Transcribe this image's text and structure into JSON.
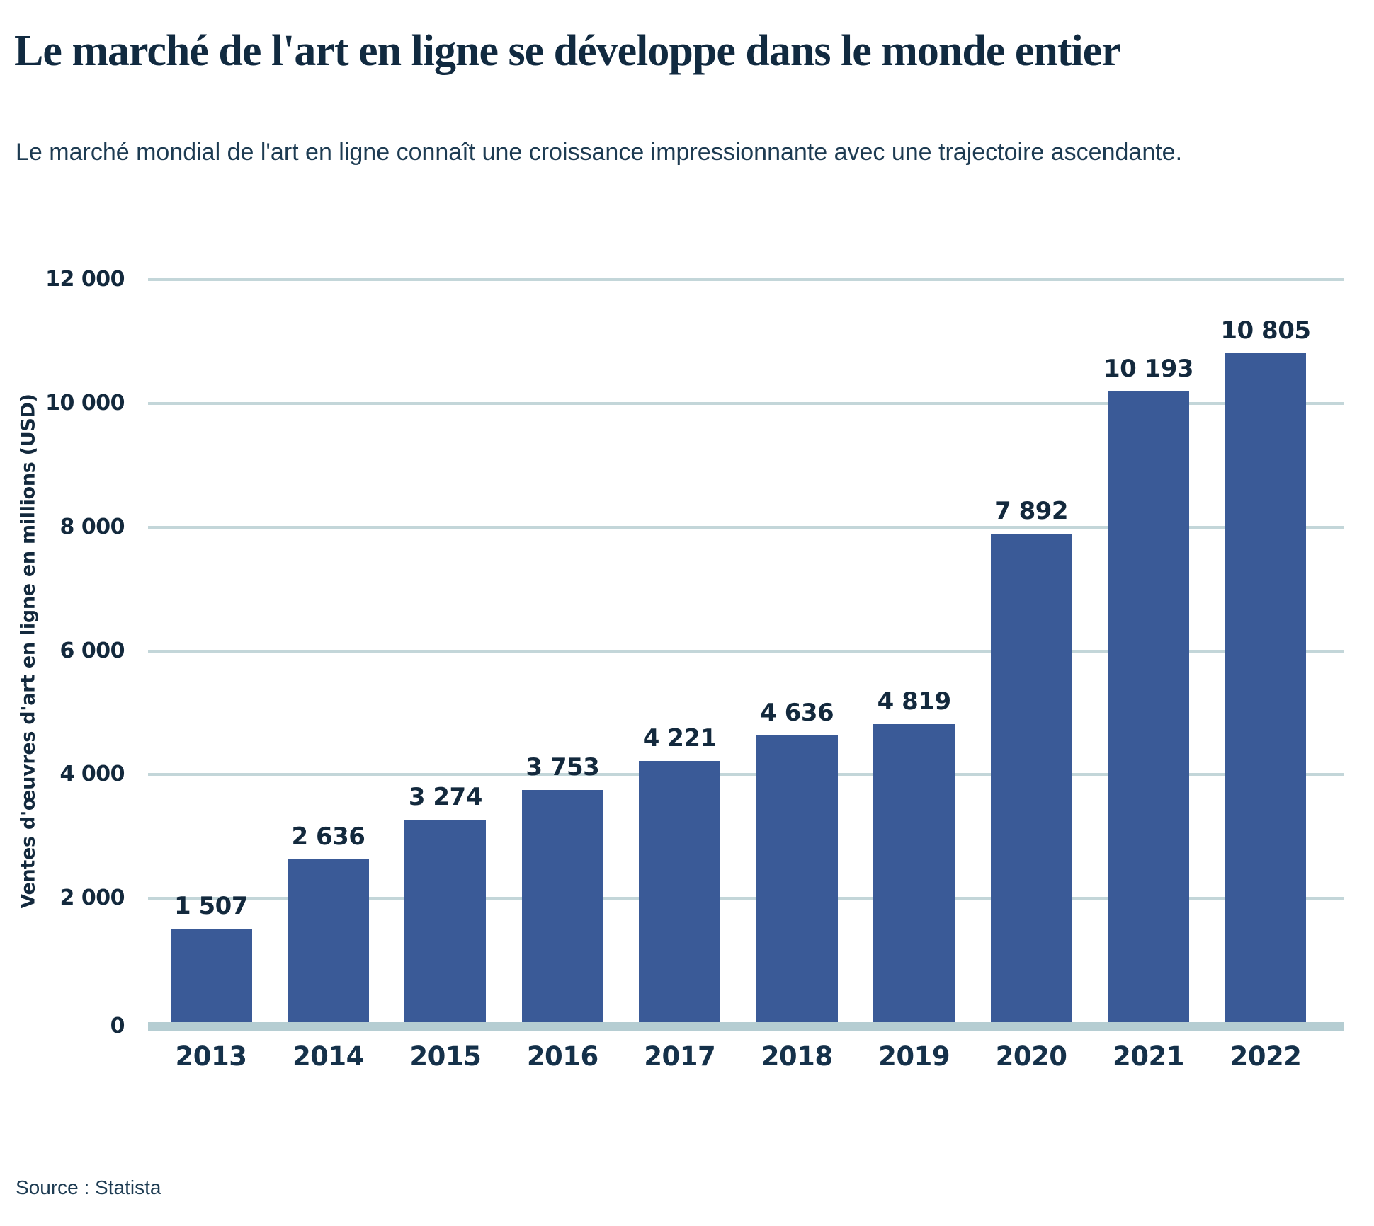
{
  "header": {
    "title": "Le marché de l'art en ligne se développe dans le monde entier",
    "subtitle": "Le marché mondial de l'art en ligne connaît une croissance impressionnante avec une trajectoire ascendante."
  },
  "chart_data": {
    "type": "bar",
    "title": "Le marché de l'art en ligne se développe dans le monde entier",
    "subtitle": "Le marché mondial de l'art en ligne connaît une croissance impressionnante avec une trajectoire ascendante.",
    "categories": [
      "2013",
      "2014",
      "2015",
      "2016",
      "2017",
      "2018",
      "2019",
      "2020",
      "2021",
      "2022"
    ],
    "values": [
      1507,
      2636,
      3274,
      3753,
      4221,
      4636,
      4819,
      7892,
      10193,
      10805
    ],
    "value_labels": [
      "1 507",
      "2 636",
      "3 274",
      "3 753",
      "4 221",
      "4 636",
      "4 819",
      "7 892",
      "10 193",
      "10 805"
    ],
    "xlabel": "",
    "ylabel": "Ventes d'œuvres d'art en ligne en millions (USD)",
    "ylim": [
      0,
      12000
    ],
    "yticks": [
      0,
      2000,
      4000,
      6000,
      8000,
      10000,
      12000
    ],
    "ytick_labels": [
      "0",
      "2 000",
      "4 000",
      "6 000",
      "8 000",
      "10 000",
      "12 000"
    ],
    "grid": "horizontal",
    "legend_position": "none"
  },
  "colors": {
    "bar": "#3a5a97",
    "gridline": "#c3d6d9",
    "baseline": "#b5cdd2",
    "title_text": "#112a40",
    "chart_text": "#13293d",
    "subtitle_text": "#1d3b52"
  },
  "source": {
    "label": "Source : Statista"
  }
}
